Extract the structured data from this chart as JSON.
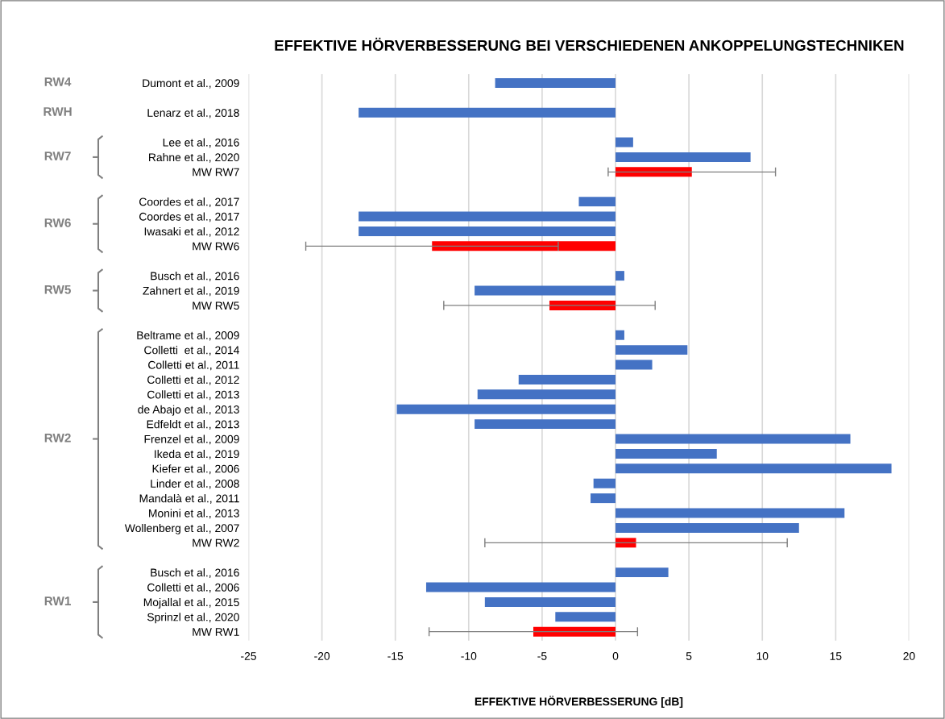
{
  "chart_data": {
    "type": "bar",
    "orientation": "horizontal",
    "title": "EFFEKTIVE HÖRVERBESSERUNG BEI VERSCHIEDENEN ANKOPPELUNGSTECHNIKEN",
    "xlabel": "EFFEKTIVE HÖRVERBESSERUNG [dB]",
    "categories": [
      "Dumont et al., 2009",
      null,
      "Lenarz et al., 2018",
      null,
      "Lee et al., 2016",
      "Rahne et al., 2020",
      "MW RW7",
      null,
      "Coordes et al., 2017",
      "Coordes et al., 2017",
      "Iwasaki et al., 2012",
      "MW RW6",
      null,
      "Busch et al., 2016",
      "Zahnert et al., 2019",
      "MW RW5",
      null,
      "Beltrame et al., 2009",
      "Colletti  et al., 2014",
      "Colletti et al., 2011",
      "Colletti et al., 2012",
      "Colletti et al., 2013",
      "de Abajo et al., 2013",
      "Edfeldt et al., 2013",
      "Frenzel et al., 2009",
      "Ikeda et al., 2019",
      "Kiefer et al., 2006",
      "Linder et al., 2008",
      "Mandalà et al., 2011",
      "Monini et al., 2013",
      "Wollenberg et al., 2007",
      "MW RW2",
      null,
      "Busch et al., 2016",
      "Colletti et al., 2006",
      "Mojallal et al., 2015",
      "Sprinzl et al., 2020",
      "MW RW1"
    ],
    "values": [
      -8.2,
      null,
      -17.5,
      null,
      1.2,
      9.2,
      5.2,
      null,
      -2.5,
      -17.5,
      -17.5,
      -12.5,
      null,
      0.6,
      -9.6,
      -4.5,
      null,
      0.6,
      4.9,
      2.5,
      -6.6,
      -9.4,
      -14.9,
      -9.6,
      16.0,
      6.9,
      18.8,
      -1.5,
      -1.7,
      15.6,
      12.5,
      1.4,
      null,
      3.6,
      -12.9,
      -8.9,
      -4.1,
      -5.6
    ],
    "colors": [
      "#4472c4",
      null,
      "#4472c4",
      null,
      "#4472c4",
      "#4472c4",
      "#ff0000",
      null,
      "#4472c4",
      "#4472c4",
      "#4472c4",
      "#ff0000",
      null,
      "#4472c4",
      "#4472c4",
      "#ff0000",
      null,
      "#4472c4",
      "#4472c4",
      "#4472c4",
      "#4472c4",
      "#4472c4",
      "#4472c4",
      "#4472c4",
      "#4472c4",
      "#4472c4",
      "#4472c4",
      "#4472c4",
      "#4472c4",
      "#4472c4",
      "#4472c4",
      "#ff0000",
      null,
      "#4472c4",
      "#4472c4",
      "#4472c4",
      "#4472c4",
      "#ff0000"
    ],
    "errors": [
      null,
      null,
      null,
      null,
      null,
      null,
      5.7,
      null,
      null,
      null,
      null,
      8.6,
      null,
      null,
      null,
      7.2,
      null,
      null,
      null,
      null,
      null,
      null,
      null,
      null,
      null,
      null,
      null,
      null,
      null,
      null,
      null,
      10.3,
      null,
      null,
      null,
      null,
      null,
      7.1
    ],
    "xlim": [
      -25,
      20
    ],
    "xticks": [
      -25,
      -20,
      -15,
      -10,
      -5,
      0,
      5,
      10,
      15,
      20
    ],
    "grid": "x",
    "legend": false,
    "annotations": [
      "RW4",
      "RWH",
      "RW7",
      "RW6",
      "RW5",
      "RW2",
      "RW1"
    ]
  }
}
